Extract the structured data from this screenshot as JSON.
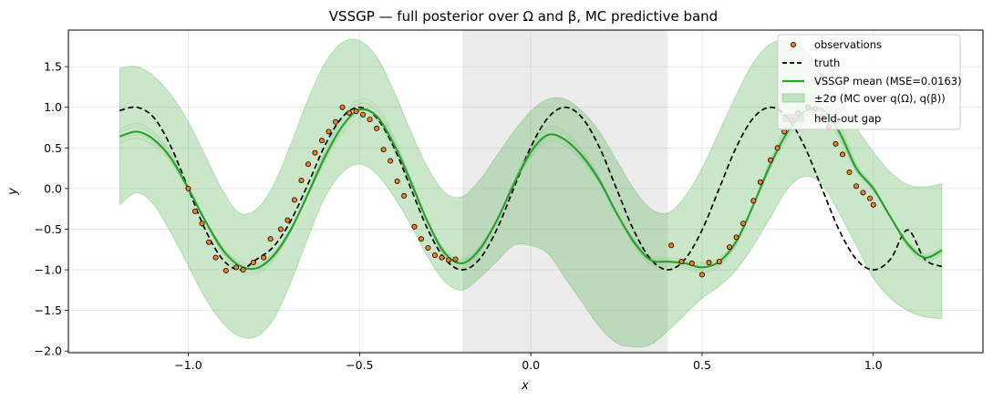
{
  "chart_data": {
    "type": "line",
    "title": "VSSGP — full posterior over Ω and β, MC predictive band",
    "xlabel": "x",
    "ylabel": "y",
    "xlim": [
      -1.35,
      1.32
    ],
    "ylim": [
      -2.02,
      1.95
    ],
    "xticks": [
      -1.0,
      -0.5,
      0.0,
      0.5,
      1.0
    ],
    "xtick_labels": [
      "−1.0",
      "−0.5",
      "0.0",
      "0.5",
      "1.0"
    ],
    "yticks": [
      -2.0,
      -1.5,
      -1.0,
      -0.5,
      0.0,
      0.5,
      1.0,
      1.5
    ],
    "ytick_labels": [
      "−2.0",
      "−1.5",
      "−1.0",
      "−0.5",
      "0.0",
      "0.5",
      "1.0",
      "1.5"
    ],
    "grid": true,
    "legend_position": "top-right",
    "held_out_gap": [
      -0.2,
      0.4
    ],
    "colors": {
      "observations_face": "#ff7f0e",
      "observations_edge": "#000000",
      "truth": "#000000",
      "mean": "#2ca02c",
      "band": "#2ca02c",
      "gap": "#e0e0e0"
    },
    "series": [
      {
        "name": "observations",
        "kind": "scatter",
        "x": [
          -1.0,
          -0.98,
          -0.96,
          -0.94,
          -0.92,
          -0.89,
          -0.86,
          -0.84,
          -0.81,
          -0.78,
          -0.76,
          -0.73,
          -0.71,
          -0.69,
          -0.67,
          -0.65,
          -0.63,
          -0.61,
          -0.59,
          -0.57,
          -0.55,
          -0.53,
          -0.51,
          -0.49,
          -0.47,
          -0.45,
          -0.43,
          -0.41,
          -0.39,
          -0.37,
          -0.34,
          -0.32,
          -0.3,
          -0.28,
          -0.26,
          -0.24,
          -0.22,
          0.41,
          0.44,
          0.47,
          0.5,
          0.52,
          0.55,
          0.58,
          0.6,
          0.62,
          0.65,
          0.67,
          0.7,
          0.72,
          0.74,
          0.76,
          0.78,
          0.81,
          0.83,
          0.85,
          0.87,
          0.89,
          0.91,
          0.93,
          0.95,
          0.97,
          0.99,
          1.0
        ],
        "y": [
          0.0,
          -0.28,
          -0.43,
          -0.66,
          -0.85,
          -1.01,
          -0.97,
          -1.0,
          -0.91,
          -0.85,
          -0.62,
          -0.5,
          -0.39,
          -0.14,
          0.1,
          0.3,
          0.44,
          0.59,
          0.7,
          0.82,
          1.0,
          0.93,
          0.95,
          0.91,
          0.85,
          0.74,
          0.48,
          0.34,
          0.09,
          -0.09,
          -0.47,
          -0.62,
          -0.73,
          -0.82,
          -0.85,
          -0.88,
          -0.87,
          -0.7,
          -0.9,
          -0.92,
          -1.06,
          -0.91,
          -0.9,
          -0.72,
          -0.6,
          -0.43,
          -0.15,
          0.08,
          0.35,
          0.5,
          0.7,
          0.85,
          0.93,
          1.0,
          0.98,
          0.88,
          0.76,
          0.55,
          0.42,
          0.2,
          0.03,
          -0.05,
          -0.12,
          -0.2
        ]
      },
      {
        "name": "truth",
        "kind": "line",
        "style": "dashed",
        "x": [
          -1.2,
          -1.15,
          -1.1,
          -1.05,
          -1.0,
          -0.95,
          -0.9,
          -0.85,
          -0.8,
          -0.75,
          -0.7,
          -0.65,
          -0.6,
          -0.55,
          -0.5,
          -0.45,
          -0.4,
          -0.35,
          -0.3,
          -0.25,
          -0.2,
          -0.15,
          -0.1,
          -0.05,
          0.0,
          0.05,
          0.1,
          0.15,
          0.2,
          0.25,
          0.3,
          0.35,
          0.4,
          0.45,
          0.5,
          0.55,
          0.6,
          0.65,
          0.7,
          0.75,
          0.8,
          0.85,
          0.9,
          0.95,
          1.0,
          1.05,
          1.1,
          1.15,
          1.2
        ],
        "y": [
          0.96,
          1.0,
          0.87,
          0.51,
          0.0,
          -0.51,
          -0.87,
          -1.0,
          -0.87,
          -0.71,
          -0.39,
          0.06,
          0.54,
          0.88,
          1.0,
          0.87,
          0.51,
          0.0,
          -0.51,
          -0.87,
          -1.0,
          -0.87,
          -0.51,
          0.0,
          0.51,
          0.87,
          1.0,
          0.87,
          0.51,
          0.0,
          -0.51,
          -0.87,
          -1.0,
          -0.87,
          -0.51,
          0.0,
          0.51,
          0.87,
          1.0,
          0.87,
          0.51,
          0.0,
          -0.51,
          -0.87,
          -1.0,
          -0.87,
          -0.51,
          -0.87,
          -0.96
        ]
      },
      {
        "name": "VSSGP mean (MSE=0.0163)",
        "kind": "line",
        "x": [
          -1.2,
          -1.15,
          -1.1,
          -1.05,
          -1.0,
          -0.95,
          -0.9,
          -0.85,
          -0.8,
          -0.75,
          -0.7,
          -0.65,
          -0.6,
          -0.55,
          -0.5,
          -0.45,
          -0.4,
          -0.35,
          -0.3,
          -0.25,
          -0.2,
          -0.15,
          -0.1,
          -0.05,
          0.0,
          0.05,
          0.1,
          0.15,
          0.2,
          0.25,
          0.3,
          0.35,
          0.4,
          0.45,
          0.5,
          0.55,
          0.6,
          0.65,
          0.7,
          0.75,
          0.8,
          0.85,
          0.9,
          0.95,
          1.0,
          1.05,
          1.1,
          1.15,
          1.2
        ],
        "y": [
          0.64,
          0.7,
          0.6,
          0.37,
          0.0,
          -0.4,
          -0.75,
          -0.95,
          -0.98,
          -0.82,
          -0.5,
          -0.06,
          0.4,
          0.77,
          0.97,
          0.89,
          0.55,
          0.08,
          -0.42,
          -0.8,
          -0.92,
          -0.75,
          -0.4,
          0.05,
          0.45,
          0.66,
          0.6,
          0.4,
          0.1,
          -0.3,
          -0.65,
          -0.88,
          -0.9,
          -0.92,
          -0.97,
          -0.9,
          -0.65,
          -0.2,
          0.3,
          0.7,
          0.95,
          0.97,
          0.7,
          0.25,
          0.0,
          -0.35,
          -0.68,
          -0.85,
          -0.76
        ]
      },
      {
        "name": "±2σ (MC over q(Ω), q(β))",
        "kind": "band",
        "x": [
          -1.2,
          -1.15,
          -1.1,
          -1.05,
          -1.0,
          -0.95,
          -0.9,
          -0.85,
          -0.8,
          -0.75,
          -0.7,
          -0.65,
          -0.6,
          -0.55,
          -0.5,
          -0.45,
          -0.4,
          -0.35,
          -0.3,
          -0.25,
          -0.2,
          -0.15,
          -0.1,
          -0.05,
          0.0,
          0.05,
          0.1,
          0.15,
          0.2,
          0.25,
          0.3,
          0.35,
          0.4,
          0.45,
          0.5,
          0.55,
          0.6,
          0.65,
          0.7,
          0.75,
          0.8,
          0.85,
          0.9,
          0.95,
          1.0,
          1.05,
          1.1,
          1.15,
          1.2
        ],
        "lower": [
          -0.2,
          -0.05,
          -0.2,
          -0.55,
          -0.95,
          -1.35,
          -1.65,
          -1.82,
          -1.82,
          -1.6,
          -1.15,
          -0.6,
          -0.1,
          0.2,
          0.3,
          0.18,
          -0.1,
          -0.45,
          -0.85,
          -1.15,
          -1.25,
          -1.1,
          -0.9,
          -0.7,
          -0.7,
          -0.8,
          -1.1,
          -1.4,
          -1.7,
          -1.9,
          -1.95,
          -1.92,
          -1.75,
          -1.55,
          -1.35,
          -1.2,
          -1.0,
          -0.7,
          -0.35,
          0.0,
          0.15,
          0.05,
          -0.3,
          -0.7,
          -1.1,
          -1.35,
          -1.5,
          -1.58,
          -1.6
        ],
        "upper": [
          1.48,
          1.5,
          1.38,
          1.15,
          0.82,
          0.4,
          -0.02,
          -0.3,
          -0.25,
          0.05,
          0.55,
          1.1,
          1.55,
          1.8,
          1.82,
          1.62,
          1.2,
          0.7,
          0.25,
          -0.05,
          -0.1,
          0.1,
          0.4,
          0.7,
          0.95,
          1.1,
          1.1,
          0.95,
          0.7,
          0.35,
          0.0,
          -0.25,
          -0.3,
          -0.1,
          0.25,
          0.7,
          1.15,
          1.55,
          1.78,
          1.82,
          1.7,
          1.45,
          1.1,
          0.75,
          0.45,
          0.2,
          0.05,
          0.02,
          0.06
        ]
      }
    ],
    "legend": {
      "entries": [
        {
          "key": "obs",
          "label": "observations"
        },
        {
          "key": "truth",
          "label": "truth"
        },
        {
          "key": "mean",
          "label": "VSSGP mean (MSE=0.0163)"
        },
        {
          "key": "band",
          "label": "±2σ (MC over q(Ω), q(β))"
        },
        {
          "key": "gap",
          "label": "held-out gap"
        }
      ]
    }
  }
}
